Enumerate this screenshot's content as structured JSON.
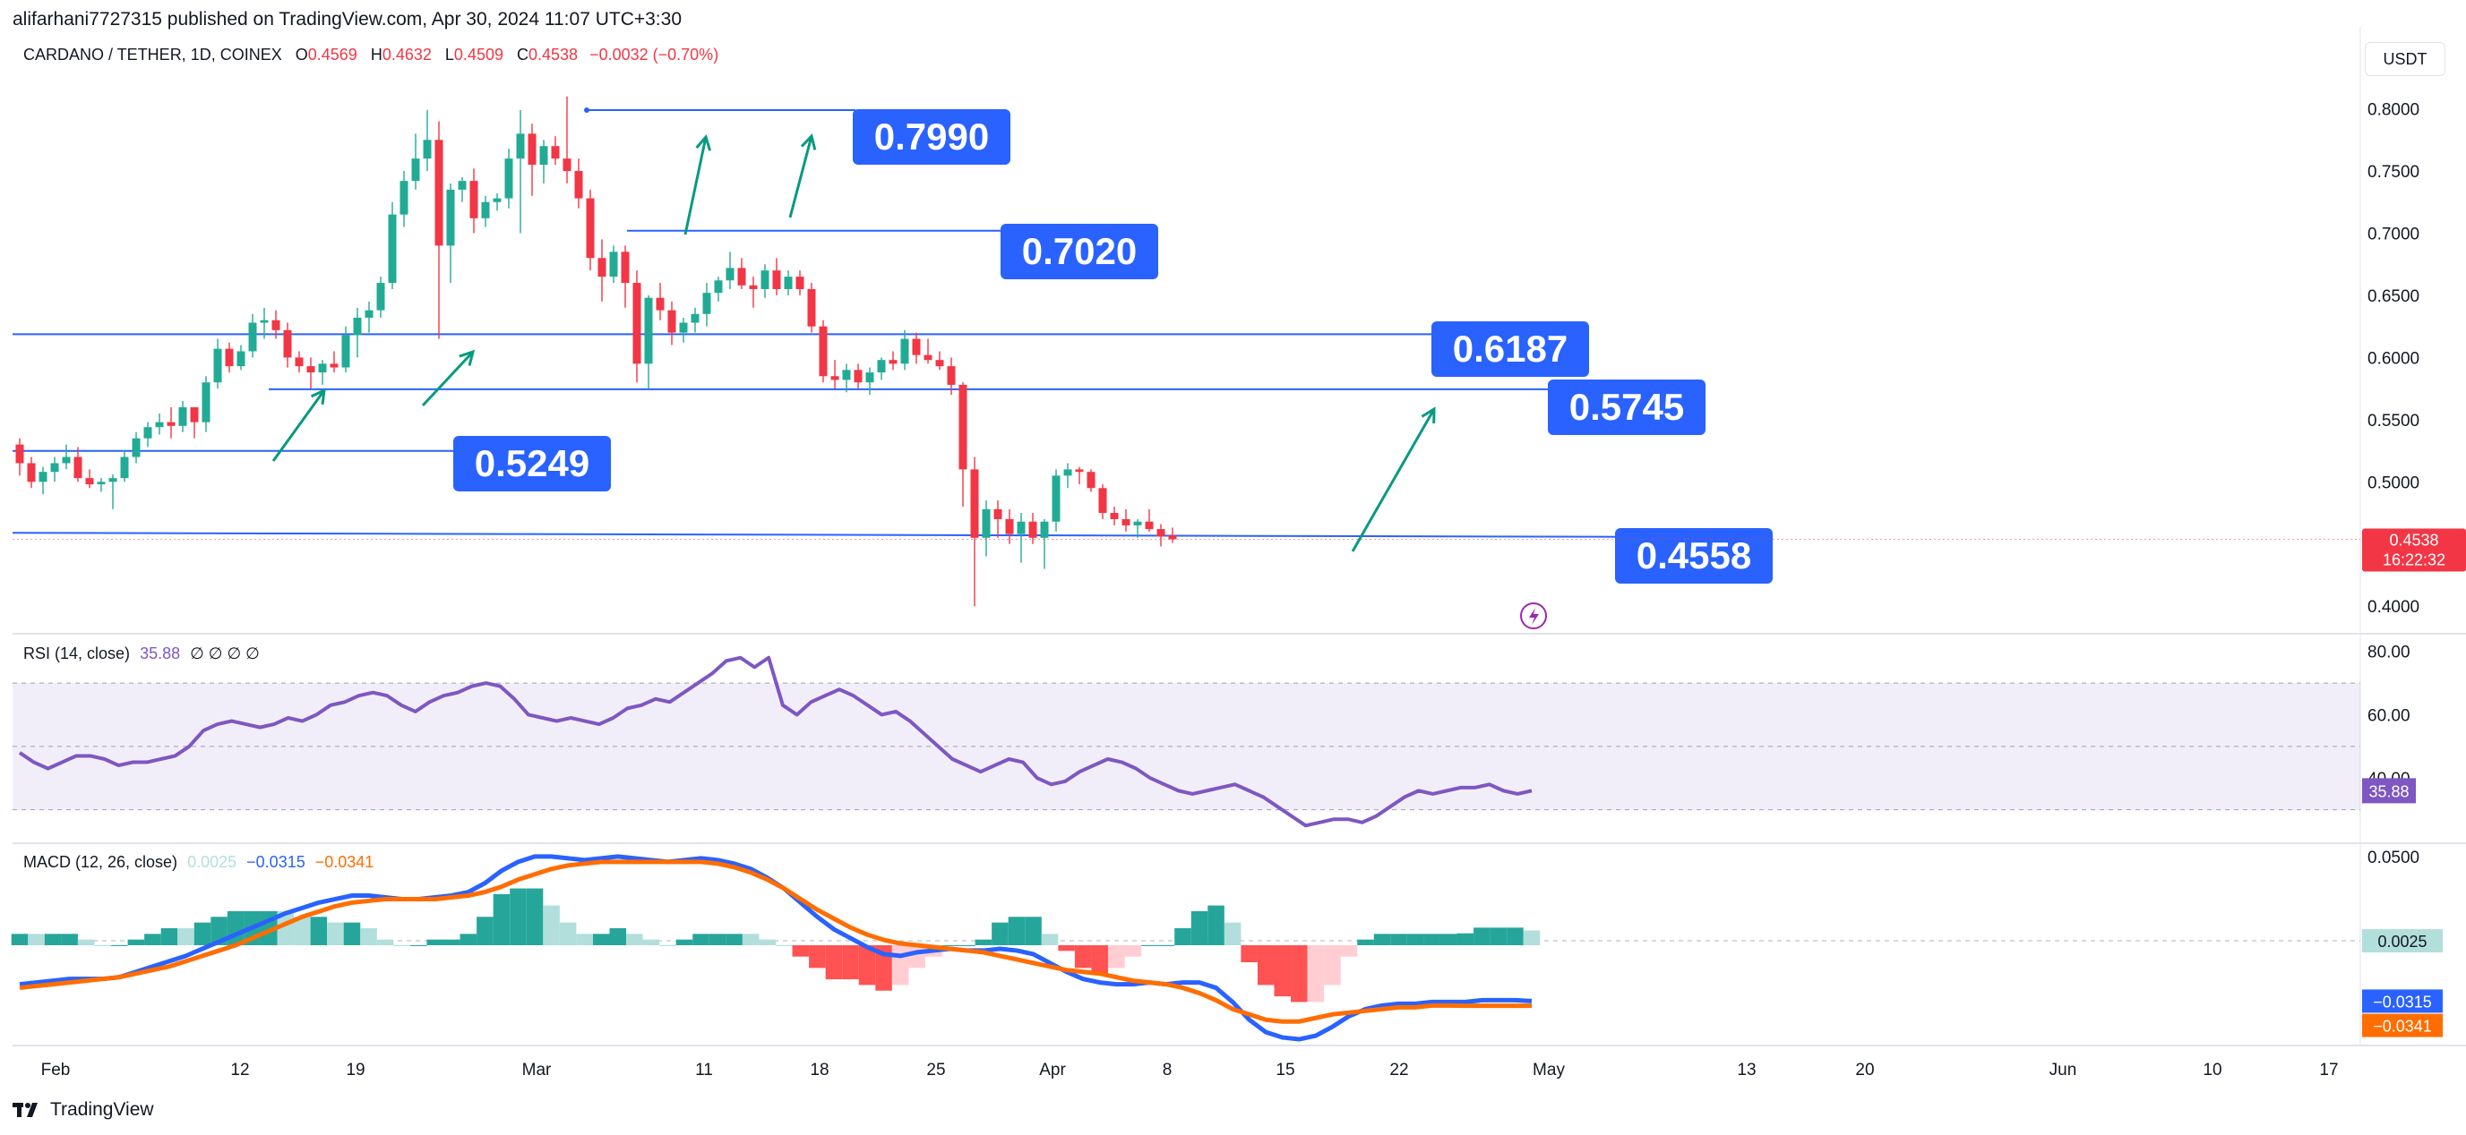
{
  "header": {
    "publisher": "alifarhani7727315 published on TradingView.com, Apr 30, 2024 11:07 UTC+3:30"
  },
  "legend": {
    "symbol": "CARDANO / TETHER, 1D, COINEX",
    "open_label": "O",
    "open": "0.4569",
    "high_label": "H",
    "high": "0.4632",
    "low_label": "L",
    "low": "0.4509",
    "close_label": "C",
    "close": "0.4538",
    "change": "−0.0032 (−0.70%)"
  },
  "currency_button": "USDT",
  "rsi_legend": {
    "label": "RSI (14, close)",
    "value": "35.88",
    "extras": "∅ ∅ ∅ ∅"
  },
  "macd_legend": {
    "label": "MACD (12, 26, close)",
    "hist": "0.0025",
    "macd": "−0.0315",
    "signal": "−0.0341"
  },
  "footer": {
    "brand": "TradingView"
  },
  "colors": {
    "up": "#22ab94",
    "down": "#f23645",
    "label_bg": "#2962ff",
    "rsi": "#7e57c2",
    "macd": "#2962ff",
    "signal": "#ff6d00"
  },
  "chart_data": {
    "type": "candlestick",
    "title": "CARDANO / TETHER, 1D, COINEX",
    "x_ticks": [
      "Feb",
      "12",
      "19",
      "Mar",
      "11",
      "18",
      "25",
      "Apr",
      "8",
      "15",
      "22",
      "May",
      "13",
      "20",
      "Jun",
      "10",
      "17"
    ],
    "y_ticks": [
      "0.8000",
      "0.7500",
      "0.7000",
      "0.6500",
      "0.6000",
      "0.5500",
      "0.5000",
      "0.4000"
    ],
    "ylim": [
      0.38,
      0.84
    ],
    "last_price_label": "0.4538",
    "countdown": "16:22:32",
    "candles": [
      [
        0.53,
        0.535,
        0.505,
        0.515
      ],
      [
        0.515,
        0.52,
        0.495,
        0.5
      ],
      [
        0.5,
        0.512,
        0.49,
        0.508
      ],
      [
        0.508,
        0.52,
        0.5,
        0.515
      ],
      [
        0.515,
        0.53,
        0.51,
        0.52
      ],
      [
        0.52,
        0.528,
        0.5,
        0.503
      ],
      [
        0.503,
        0.51,
        0.495,
        0.498
      ],
      [
        0.498,
        0.503,
        0.492,
        0.5
      ],
      [
        0.5,
        0.506,
        0.478,
        0.503
      ],
      [
        0.503,
        0.525,
        0.5,
        0.52
      ],
      [
        0.52,
        0.54,
        0.515,
        0.535
      ],
      [
        0.535,
        0.548,
        0.528,
        0.544
      ],
      [
        0.544,
        0.555,
        0.538,
        0.548
      ],
      [
        0.548,
        0.56,
        0.535,
        0.545
      ],
      [
        0.545,
        0.565,
        0.54,
        0.56
      ],
      [
        0.56,
        0.56,
        0.535,
        0.548
      ],
      [
        0.548,
        0.585,
        0.54,
        0.58
      ],
      [
        0.58,
        0.615,
        0.575,
        0.607
      ],
      [
        0.607,
        0.612,
        0.588,
        0.593
      ],
      [
        0.593,
        0.61,
        0.59,
        0.605
      ],
      [
        0.605,
        0.635,
        0.6,
        0.628
      ],
      [
        0.628,
        0.64,
        0.615,
        0.63
      ],
      [
        0.63,
        0.638,
        0.615,
        0.622
      ],
      [
        0.622,
        0.628,
        0.592,
        0.6
      ],
      [
        0.6,
        0.605,
        0.588,
        0.593
      ],
      [
        0.593,
        0.6,
        0.575,
        0.588
      ],
      [
        0.588,
        0.598,
        0.578,
        0.595
      ],
      [
        0.595,
        0.605,
        0.588,
        0.592
      ],
      [
        0.592,
        0.625,
        0.588,
        0.618
      ],
      [
        0.618,
        0.64,
        0.6,
        0.632
      ],
      [
        0.632,
        0.645,
        0.62,
        0.638
      ],
      [
        0.638,
        0.665,
        0.632,
        0.66
      ],
      [
        0.66,
        0.725,
        0.655,
        0.715
      ],
      [
        0.715,
        0.75,
        0.705,
        0.742
      ],
      [
        0.742,
        0.78,
        0.735,
        0.76
      ],
      [
        0.76,
        0.799,
        0.75,
        0.775
      ],
      [
        0.775,
        0.79,
        0.615,
        0.69
      ],
      [
        0.69,
        0.74,
        0.66,
        0.735
      ],
      [
        0.735,
        0.745,
        0.725,
        0.742
      ],
      [
        0.742,
        0.752,
        0.7,
        0.712
      ],
      [
        0.712,
        0.73,
        0.705,
        0.725
      ],
      [
        0.725,
        0.732,
        0.718,
        0.728
      ],
      [
        0.728,
        0.768,
        0.72,
        0.76
      ],
      [
        0.76,
        0.799,
        0.7,
        0.78
      ],
      [
        0.78,
        0.788,
        0.73,
        0.755
      ],
      [
        0.755,
        0.775,
        0.74,
        0.77
      ],
      [
        0.77,
        0.778,
        0.755,
        0.76
      ],
      [
        0.76,
        0.81,
        0.74,
        0.75
      ],
      [
        0.75,
        0.76,
        0.72,
        0.728
      ],
      [
        0.728,
        0.735,
        0.67,
        0.68
      ],
      [
        0.68,
        0.695,
        0.645,
        0.665
      ],
      [
        0.665,
        0.69,
        0.66,
        0.685
      ],
      [
        0.685,
        0.69,
        0.64,
        0.66
      ],
      [
        0.66,
        0.67,
        0.58,
        0.595
      ],
      [
        0.595,
        0.65,
        0.575,
        0.648
      ],
      [
        0.648,
        0.66,
        0.63,
        0.638
      ],
      [
        0.638,
        0.645,
        0.61,
        0.62
      ],
      [
        0.62,
        0.632,
        0.612,
        0.628
      ],
      [
        0.628,
        0.64,
        0.62,
        0.635
      ],
      [
        0.635,
        0.66,
        0.625,
        0.652
      ],
      [
        0.652,
        0.665,
        0.645,
        0.662
      ],
      [
        0.662,
        0.685,
        0.655,
        0.672
      ],
      [
        0.672,
        0.68,
        0.655,
        0.658
      ],
      [
        0.658,
        0.665,
        0.64,
        0.655
      ],
      [
        0.655,
        0.675,
        0.648,
        0.67
      ],
      [
        0.67,
        0.68,
        0.65,
        0.655
      ],
      [
        0.655,
        0.67,
        0.65,
        0.665
      ],
      [
        0.665,
        0.67,
        0.65,
        0.655
      ],
      [
        0.655,
        0.66,
        0.62,
        0.625
      ],
      [
        0.625,
        0.63,
        0.58,
        0.585
      ],
      [
        0.585,
        0.598,
        0.575,
        0.582
      ],
      [
        0.582,
        0.595,
        0.572,
        0.59
      ],
      [
        0.59,
        0.595,
        0.575,
        0.58
      ],
      [
        0.58,
        0.592,
        0.57,
        0.588
      ],
      [
        0.588,
        0.6,
        0.582,
        0.598
      ],
      [
        0.598,
        0.605,
        0.59,
        0.595
      ],
      [
        0.595,
        0.622,
        0.59,
        0.615
      ],
      [
        0.615,
        0.62,
        0.595,
        0.602
      ],
      [
        0.602,
        0.615,
        0.595,
        0.598
      ],
      [
        0.598,
        0.605,
        0.59,
        0.593
      ],
      [
        0.593,
        0.6,
        0.57,
        0.578
      ],
      [
        0.578,
        0.58,
        0.48,
        0.51
      ],
      [
        0.51,
        0.52,
        0.4,
        0.455
      ],
      [
        0.455,
        0.485,
        0.44,
        0.478
      ],
      [
        0.478,
        0.485,
        0.455,
        0.47
      ],
      [
        0.47,
        0.478,
        0.45,
        0.458
      ],
      [
        0.458,
        0.475,
        0.435,
        0.468
      ],
      [
        0.468,
        0.475,
        0.45,
        0.455
      ],
      [
        0.455,
        0.47,
        0.43,
        0.468
      ],
      [
        0.468,
        0.51,
        0.46,
        0.505
      ],
      [
        0.505,
        0.515,
        0.495,
        0.51
      ],
      [
        0.51,
        0.512,
        0.498,
        0.508
      ],
      [
        0.508,
        0.51,
        0.492,
        0.495
      ],
      [
        0.495,
        0.498,
        0.47,
        0.475
      ],
      [
        0.475,
        0.48,
        0.465,
        0.47
      ],
      [
        0.47,
        0.478,
        0.46,
        0.465
      ],
      [
        0.465,
        0.47,
        0.455,
        0.468
      ],
      [
        0.468,
        0.478,
        0.46,
        0.462
      ],
      [
        0.462,
        0.466,
        0.448,
        0.456
      ],
      [
        0.4569,
        0.4632,
        0.4509,
        0.4538
      ]
    ],
    "levels": [
      {
        "label": "0.7990",
        "value": 0.799
      },
      {
        "label": "0.7020",
        "value": 0.702
      },
      {
        "label": "0.6187",
        "value": 0.6187
      },
      {
        "label": "0.5745",
        "value": 0.5745
      },
      {
        "label": "0.5249",
        "value": 0.5249
      },
      {
        "label": "0.4558",
        "value": 0.4558
      }
    ],
    "rsi": {
      "y_ticks": [
        "80.00",
        "60.00",
        "40.00"
      ],
      "ylim": [
        20,
        85
      ],
      "band": [
        30,
        70
      ],
      "value_label": "35.88",
      "values": [
        48,
        45,
        43,
        45,
        47,
        47,
        46,
        44,
        45,
        45,
        46,
        47,
        50,
        55,
        57,
        58,
        57,
        56,
        57,
        59,
        58,
        60,
        63,
        64,
        66,
        67,
        66,
        63,
        61,
        64,
        66,
        67,
        69,
        70,
        69,
        65,
        60,
        59,
        58,
        59,
        58,
        57,
        59,
        62,
        63,
        65,
        64,
        67,
        70,
        73,
        77,
        78,
        75,
        78,
        63,
        60,
        64,
        66,
        68,
        66,
        63,
        60,
        61,
        58,
        54,
        50,
        46,
        44,
        42,
        44,
        46,
        45,
        40,
        38,
        39,
        42,
        44,
        46,
        45,
        43,
        40,
        38,
        36,
        35,
        36,
        37,
        38,
        36,
        34,
        31,
        28,
        25,
        26,
        27,
        27,
        26,
        28,
        31,
        34,
        36,
        35,
        36,
        37,
        37,
        38,
        36,
        35,
        36
      ]
    },
    "macd": {
      "y_ticks": [
        "0.0500"
      ],
      "ylim": [
        -0.055,
        0.056
      ],
      "labels": [
        "0.0025",
        "−0.0315",
        "−0.0341"
      ],
      "macd": [
        -0.022,
        -0.021,
        -0.02,
        -0.019,
        -0.019,
        -0.019,
        -0.018,
        -0.015,
        -0.012,
        -0.009,
        -0.006,
        -0.002,
        0.002,
        0.006,
        0.01,
        0.014,
        0.018,
        0.021,
        0.024,
        0.026,
        0.028,
        0.028,
        0.027,
        0.026,
        0.026,
        0.027,
        0.028,
        0.03,
        0.035,
        0.042,
        0.047,
        0.05,
        0.05,
        0.049,
        0.048,
        0.049,
        0.05,
        0.049,
        0.048,
        0.047,
        0.048,
        0.049,
        0.048,
        0.046,
        0.043,
        0.038,
        0.032,
        0.024,
        0.016,
        0.009,
        0.004,
        -0.001,
        -0.005,
        -0.006,
        -0.004,
        -0.003,
        -0.002,
        -0.003,
        -0.003,
        -0.002,
        -0.003,
        -0.005,
        -0.01,
        -0.015,
        -0.019,
        -0.021,
        -0.022,
        -0.022,
        -0.021,
        -0.022,
        -0.021,
        -0.021,
        -0.024,
        -0.032,
        -0.042,
        -0.049,
        -0.052,
        -0.053,
        -0.051,
        -0.046,
        -0.04,
        -0.036,
        -0.034,
        -0.033,
        -0.033,
        -0.032,
        -0.032,
        -0.032,
        -0.031,
        -0.031,
        -0.031,
        -0.0315
      ],
      "signal": [
        -0.024,
        -0.023,
        -0.022,
        -0.021,
        -0.02,
        -0.019,
        -0.018,
        -0.016,
        -0.014,
        -0.012,
        -0.009,
        -0.006,
        -0.003,
        0.0,
        0.004,
        0.008,
        0.012,
        0.016,
        0.019,
        0.022,
        0.024,
        0.025,
        0.026,
        0.026,
        0.026,
        0.026,
        0.027,
        0.028,
        0.03,
        0.033,
        0.037,
        0.04,
        0.043,
        0.045,
        0.046,
        0.047,
        0.047,
        0.047,
        0.047,
        0.047,
        0.047,
        0.047,
        0.046,
        0.044,
        0.041,
        0.037,
        0.032,
        0.026,
        0.02,
        0.015,
        0.01,
        0.006,
        0.003,
        0.001,
        0.0,
        -0.001,
        -0.002,
        -0.003,
        -0.004,
        -0.006,
        -0.008,
        -0.01,
        -0.012,
        -0.014,
        -0.015,
        -0.016,
        -0.018,
        -0.02,
        -0.021,
        -0.022,
        -0.024,
        -0.027,
        -0.031,
        -0.036,
        -0.039,
        -0.042,
        -0.043,
        -0.043,
        -0.041,
        -0.039,
        -0.038,
        -0.037,
        -0.036,
        -0.035,
        -0.035,
        -0.034,
        -0.034,
        -0.0341,
        -0.0341,
        -0.0341,
        -0.0341,
        -0.0341
      ]
    }
  }
}
